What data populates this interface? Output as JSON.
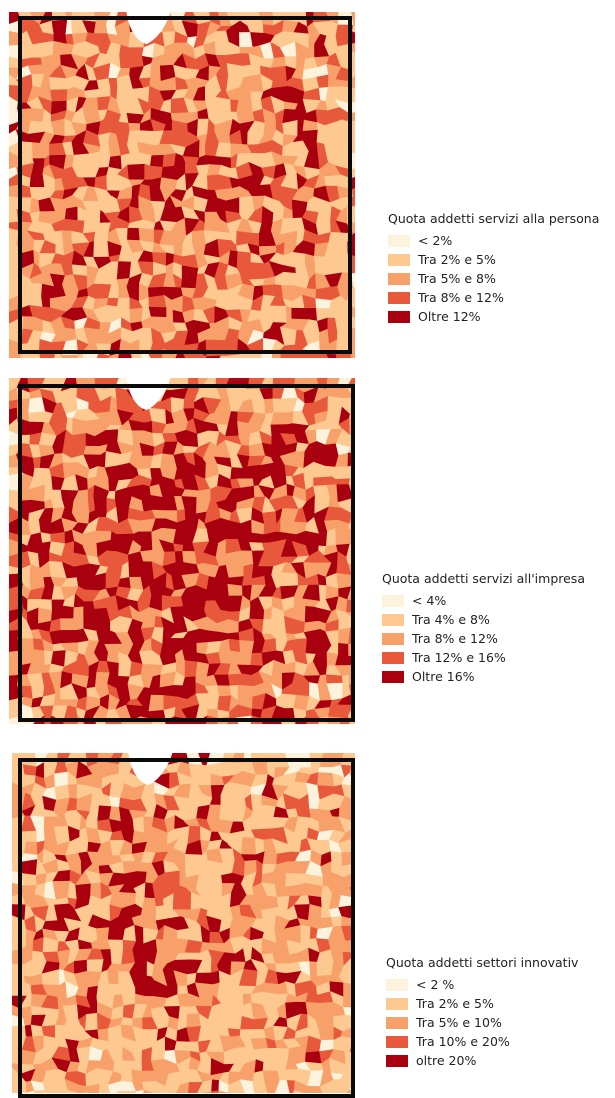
{
  "colors": [
    "#fdf2dc",
    "#fdc991",
    "#f8a06a",
    "#e8593c",
    "#a8000f"
  ],
  "panels": [
    {
      "legend_title": "Quota addetti servizi alla persona",
      "classes": [
        "< 2%",
        "Tra 2% e 5%",
        "Tra 5% e 8%",
        "Tra 8% e 12%",
        "Oltre 12%"
      ],
      "class_weights": [
        0.1,
        0.34,
        0.26,
        0.22,
        0.08
      ]
    },
    {
      "legend_title": "Quota addetti servizi all'impresa",
      "classes": [
        "< 4%",
        "Tra 4% e 8%",
        "Tra 8% e 12%",
        "Tra 12% e 16%",
        "Oltre 16%"
      ],
      "class_weights": [
        0.11,
        0.27,
        0.25,
        0.2,
        0.17
      ]
    },
    {
      "legend_title": "Quota addetti settori innovativ",
      "classes": [
        "< 2 %",
        "Tra 2% e 5%",
        "Tra 5% e 10%",
        "Tra 10% e 20%",
        "oltre 20%"
      ],
      "class_weights": [
        0.14,
        0.42,
        0.29,
        0.11,
        0.04
      ]
    }
  ]
}
